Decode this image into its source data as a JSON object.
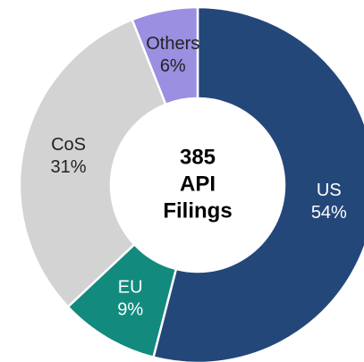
{
  "chart_data": {
    "type": "donut",
    "categories": [
      "US",
      "EU",
      "CoS",
      "Others"
    ],
    "values": [
      54,
      9,
      31,
      6
    ],
    "value_labels": [
      "54%",
      "9%",
      "31%",
      "6%"
    ],
    "colors": [
      "#24477a",
      "#138a7e",
      "#d3d3d3",
      "#9a8fe0"
    ],
    "center_text": [
      "385",
      "API",
      "Filings"
    ]
  }
}
